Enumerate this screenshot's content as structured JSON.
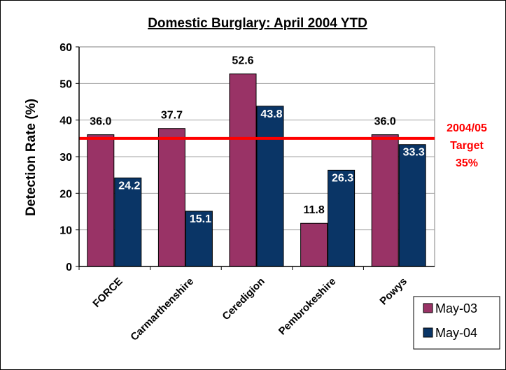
{
  "chart_data": {
    "type": "bar",
    "title": "Domestic Burglary: April 2004 YTD",
    "xlabel": "",
    "ylabel": "Detection Rate (%)",
    "ylim": [
      0,
      60
    ],
    "yticks": [
      0,
      10,
      20,
      30,
      40,
      50,
      60
    ],
    "grid": true,
    "legend_position": "bottom-right",
    "categories": [
      "FORCE",
      "Carmarthenshire",
      "Ceredigion",
      "Pembrokeshire",
      "Powys"
    ],
    "series": [
      {
        "name": "May-03",
        "color": "#993366",
        "values": [
          36.0,
          37.7,
          52.6,
          11.8,
          36.0
        ],
        "labels": [
          "36.0",
          "37.7",
          "52.6",
          "11.8",
          "36.0"
        ]
      },
      {
        "name": "May-04",
        "color": "#0A3566",
        "values": [
          24.2,
          15.1,
          43.8,
          26.3,
          33.3
        ],
        "labels": [
          "24.2",
          "15.1",
          "43.8",
          "26.3",
          "33.3"
        ]
      }
    ],
    "target": {
      "value": 35,
      "color": "#FF0000",
      "label_lines": [
        "2004/05",
        "Target",
        "35%"
      ]
    }
  }
}
